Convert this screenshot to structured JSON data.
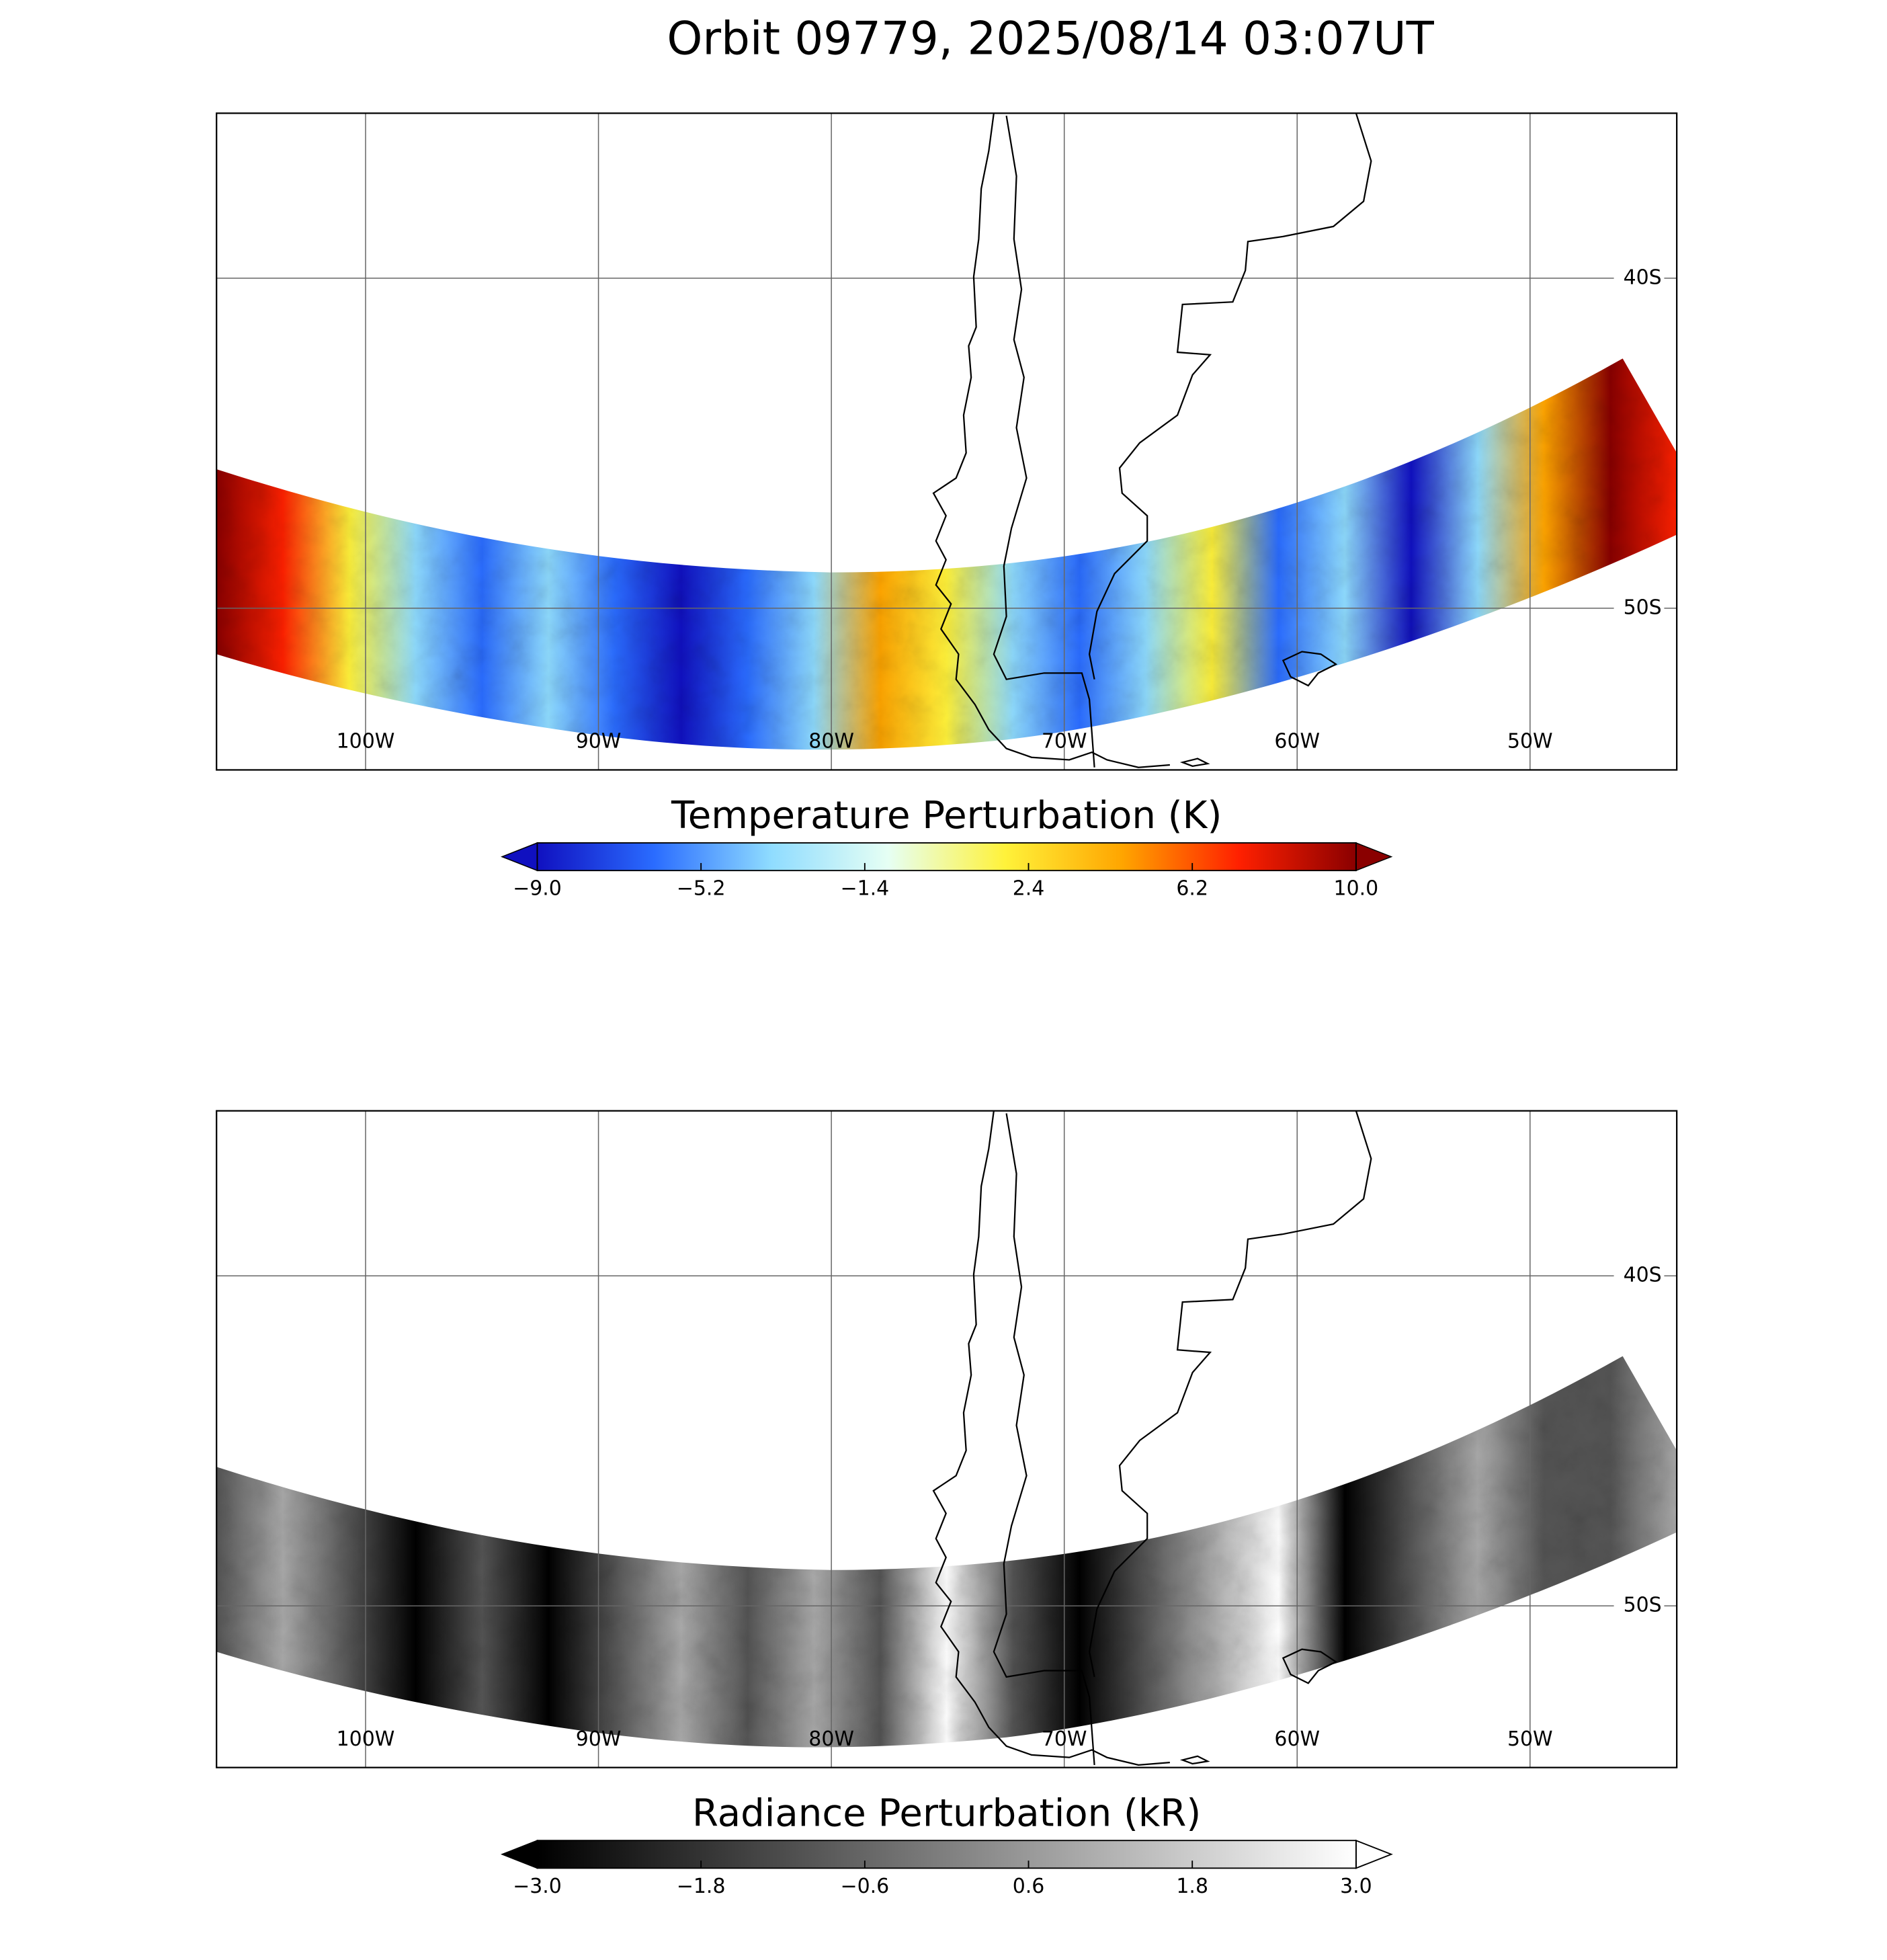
{
  "title": "Orbit 09779, 2025/08/14 03:07UT",
  "panels": [
    {
      "xlim": [
        -106.4,
        -43.7
      ],
      "ylim": [
        -54.9,
        -35.0
      ],
      "xticks": [
        {
          "value": -100,
          "label": "100W"
        },
        {
          "value": -90,
          "label": "90W"
        },
        {
          "value": -80,
          "label": "80W"
        },
        {
          "value": -70,
          "label": "70W"
        },
        {
          "value": -60,
          "label": "60W"
        },
        {
          "value": -50,
          "label": "50W"
        }
      ],
      "yticks": [
        {
          "value": -40,
          "label": "40S"
        },
        {
          "value": -50,
          "label": "50S"
        }
      ],
      "colorbar": {
        "label": "Temperature Perturbation (K)",
        "lim": [
          -9.0,
          10.0
        ],
        "ticks": [
          {
            "value": -9.0,
            "label": "−9.0"
          },
          {
            "value": -5.2,
            "label": "−5.2"
          },
          {
            "value": -1.4,
            "label": "−1.4"
          },
          2.4,
          6.2,
          {
            "value": 10.0,
            "label": "10.0"
          }
        ],
        "colors": [
          "#1010c0",
          "#2a6cff",
          "#8fdcff",
          "#e6fff4",
          "#fff23a",
          "#ffa500",
          "#ff2000",
          "#8a0000"
        ]
      }
    },
    {
      "xlim": [
        -106.4,
        -43.7
      ],
      "ylim": [
        -54.9,
        -35.0
      ],
      "xticks": [
        {
          "value": -100,
          "label": "100W"
        },
        {
          "value": -90,
          "label": "90W"
        },
        {
          "value": -80,
          "label": "80W"
        },
        {
          "value": -70,
          "label": "70W"
        },
        {
          "value": -60,
          "label": "60W"
        },
        {
          "value": -50,
          "label": "50W"
        }
      ],
      "yticks": [
        {
          "value": -40,
          "label": "40S"
        },
        {
          "value": -50,
          "label": "50S"
        }
      ],
      "colorbar": {
        "label": "Radiance Perturbation (kR)",
        "lim": [
          -3.0,
          3.0
        ],
        "ticks": [
          {
            "value": -3.0,
            "label": "−3.0"
          },
          {
            "value": -1.8,
            "label": "−1.8"
          },
          {
            "value": -0.6,
            "label": "−0.6"
          },
          0.6,
          1.8,
          {
            "value": 3.0,
            "label": "3.0"
          }
        ],
        "colors": [
          "#000000",
          "#555555",
          "#aaaaaa",
          "#ffffff"
        ]
      }
    }
  ]
}
